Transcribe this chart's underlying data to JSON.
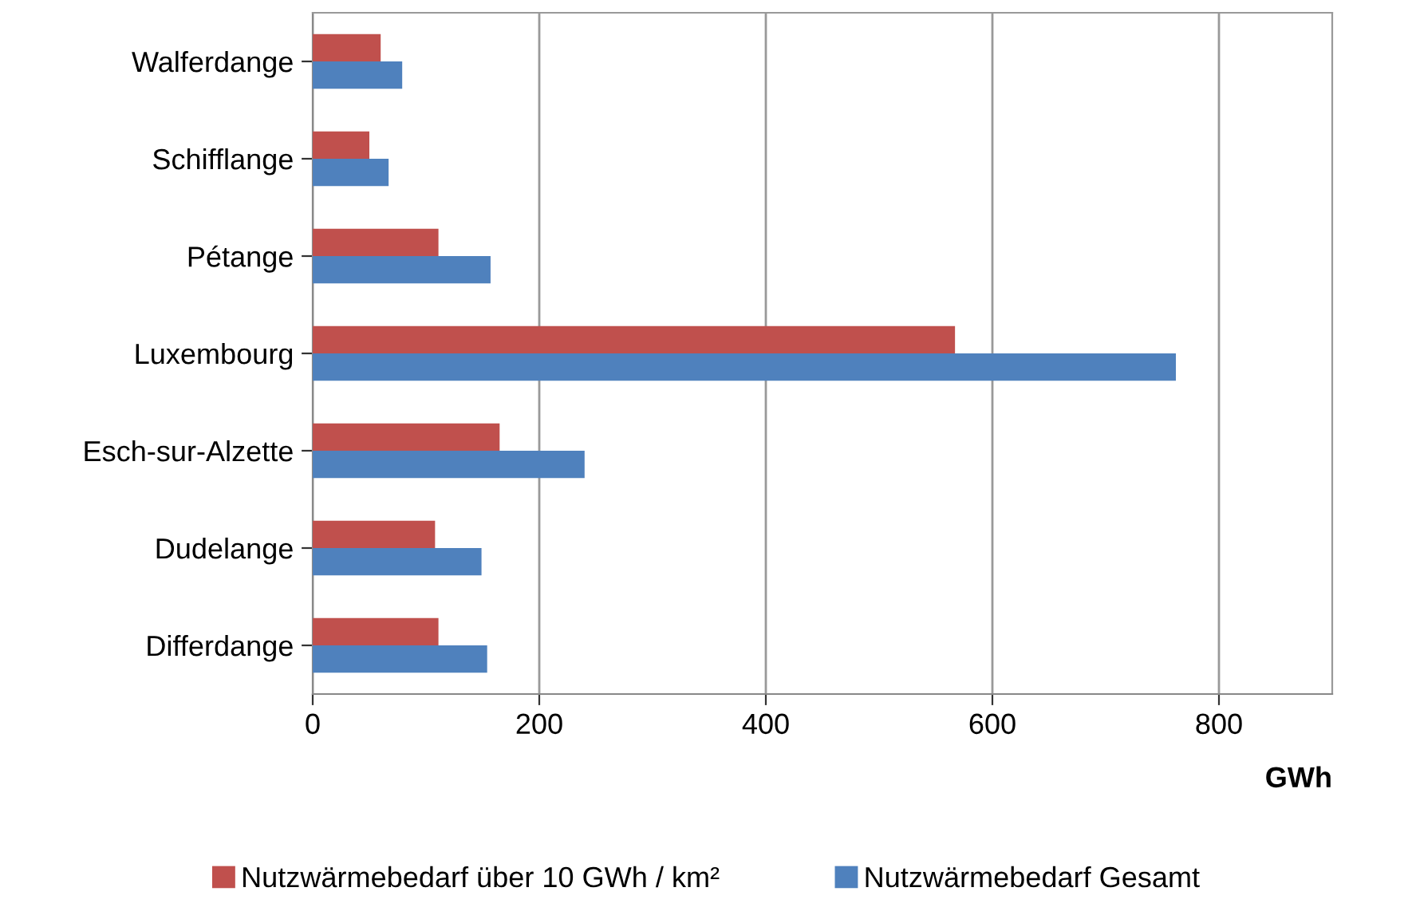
{
  "chart_data": {
    "type": "bar",
    "orientation": "horizontal",
    "xlabel": "GWh",
    "categories": [
      "Walferdange",
      "Schifflange",
      "Pétange",
      "Luxembourg",
      "Esch-sur-Alzette",
      "Dudelange",
      "Differdange"
    ],
    "series": [
      {
        "name": "Nutzwärmebedarf über 10 GWh / km²",
        "color": "#c0504d",
        "values": [
          60,
          50,
          111,
          567,
          165,
          108,
          111
        ]
      },
      {
        "name": "Nutzwärmebedarf Gesamt",
        "color": "#4f81bd",
        "values": [
          79,
          67,
          157,
          762,
          240,
          149,
          154
        ]
      }
    ],
    "xlim": [
      0,
      900
    ],
    "xticks": [
      0,
      200,
      400,
      600,
      800
    ],
    "grid": "x",
    "legend": "bottom"
  }
}
